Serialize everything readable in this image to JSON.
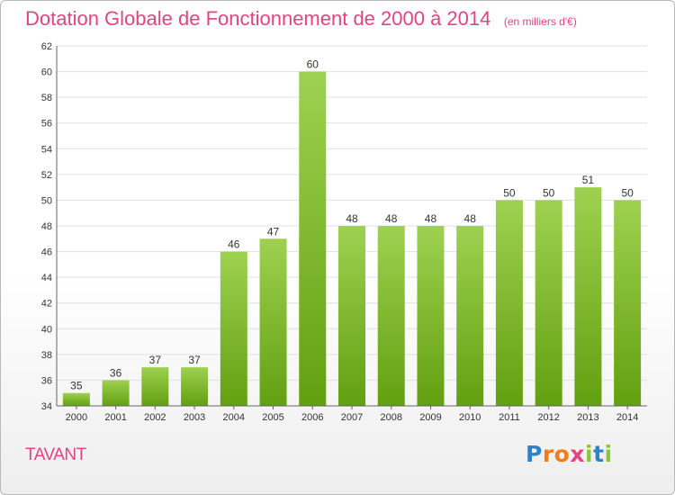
{
  "header": {
    "title": "Dotation Globale de Fonctionnement de 2000 à 2014",
    "unit": "(en milliers d'€)"
  },
  "commune": "TAVANT",
  "logo": {
    "letters": [
      "P",
      "r",
      "o",
      "x",
      "i",
      "t",
      "i"
    ]
  },
  "colors": {
    "title": "#e0457f",
    "bar_light": "#9ed150",
    "bar_dark": "#62a010",
    "grid": "#e0e0e0",
    "axis": "#666666"
  },
  "chart_data": {
    "type": "bar",
    "title": "Dotation Globale de Fonctionnement de 2000 à 2014",
    "subtitle": "(en milliers d'€)",
    "xlabel": "",
    "ylabel": "",
    "categories": [
      "2000",
      "2001",
      "2002",
      "2003",
      "2004",
      "2005",
      "2006",
      "2007",
      "2008",
      "2009",
      "2010",
      "2011",
      "2012",
      "2013",
      "2014"
    ],
    "values": [
      35,
      36,
      37,
      37,
      46,
      47,
      60,
      48,
      48,
      48,
      48,
      50,
      50,
      51,
      50
    ],
    "ylim": [
      34,
      62
    ],
    "yticks": [
      34,
      36,
      38,
      40,
      42,
      44,
      46,
      48,
      50,
      52,
      54,
      56,
      58,
      60,
      62
    ],
    "grid": true,
    "data_labels": true
  }
}
